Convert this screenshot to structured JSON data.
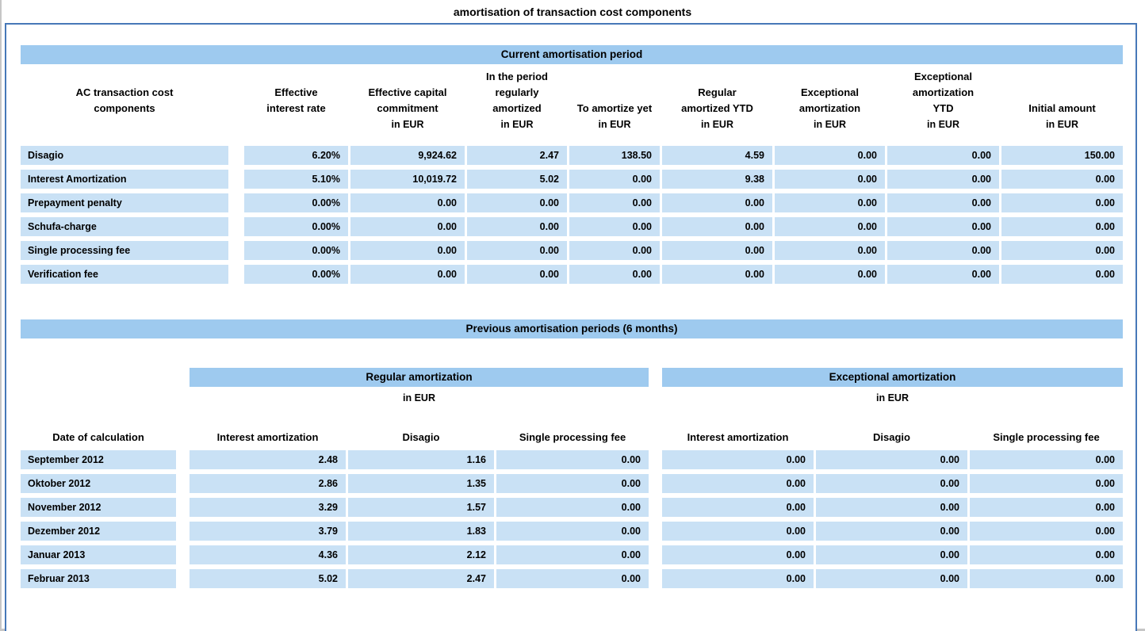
{
  "colors": {
    "band_blue": "#9ECAEF",
    "cell_blue": "#C9E1F5",
    "border_blue": "#4778B8",
    "edge_grey": "#C6C6C6",
    "text": "#000000"
  },
  "page": {
    "title": "amortisation of transaction cost components"
  },
  "current_period": {
    "section_title": "Current amortisation period",
    "columns": [
      {
        "lines": [
          "AC transaction cost",
          "components"
        ],
        "unit": ""
      },
      {
        "lines": [
          "Effective",
          "interest rate"
        ],
        "unit": ""
      },
      {
        "lines": [
          "Effective capital",
          "commitment"
        ],
        "unit": "in EUR"
      },
      {
        "lines": [
          "In the period",
          "regularly",
          "amortized"
        ],
        "unit": "in EUR"
      },
      {
        "lines": [
          "To amortize yet"
        ],
        "unit": "in EUR"
      },
      {
        "lines": [
          "Regular",
          "amortized YTD"
        ],
        "unit": "in EUR"
      },
      {
        "lines": [
          "Exceptional",
          "amortization"
        ],
        "unit": "in EUR"
      },
      {
        "lines": [
          "Exceptional",
          "amortization",
          "YTD"
        ],
        "unit": "in EUR"
      },
      {
        "lines": [
          "Initial amount"
        ],
        "unit": "in EUR"
      }
    ],
    "rows": [
      {
        "label": "Disagio",
        "values": [
          "6.20%",
          "9,924.62",
          "2.47",
          "138.50",
          "4.59",
          "0.00",
          "0.00",
          "150.00"
        ]
      },
      {
        "label": "Interest Amortization",
        "values": [
          "5.10%",
          "10,019.72",
          "5.02",
          "0.00",
          "9.38",
          "0.00",
          "0.00",
          "0.00"
        ]
      },
      {
        "label": "Prepayment penalty",
        "values": [
          "0.00%",
          "0.00",
          "0.00",
          "0.00",
          "0.00",
          "0.00",
          "0.00",
          "0.00"
        ]
      },
      {
        "label": "Schufa-charge",
        "values": [
          "0.00%",
          "0.00",
          "0.00",
          "0.00",
          "0.00",
          "0.00",
          "0.00",
          "0.00"
        ]
      },
      {
        "label": "Single processing fee",
        "values": [
          "0.00%",
          "0.00",
          "0.00",
          "0.00",
          "0.00",
          "0.00",
          "0.00",
          "0.00"
        ]
      },
      {
        "label": "Verification fee",
        "values": [
          "0.00%",
          "0.00",
          "0.00",
          "0.00",
          "0.00",
          "0.00",
          "0.00",
          "0.00"
        ]
      }
    ]
  },
  "previous_periods": {
    "section_title": "Previous amortisation periods (6 months)",
    "date_column_label": "Date of calculation",
    "groups": [
      {
        "label": "Regular amortization",
        "unit": "in EUR",
        "columns": [
          "Interest amortization",
          "Disagio",
          "Single processing fee"
        ]
      },
      {
        "label": "Exceptional amortization",
        "unit": "in EUR",
        "columns": [
          "Interest amortization",
          "Disagio",
          "Single processing fee"
        ]
      }
    ],
    "rows": [
      {
        "label": "September 2012",
        "values": [
          "2.48",
          "1.16",
          "0.00",
          "0.00",
          "0.00",
          "0.00"
        ]
      },
      {
        "label": "Oktober 2012",
        "values": [
          "2.86",
          "1.35",
          "0.00",
          "0.00",
          "0.00",
          "0.00"
        ]
      },
      {
        "label": "November 2012",
        "values": [
          "3.29",
          "1.57",
          "0.00",
          "0.00",
          "0.00",
          "0.00"
        ]
      },
      {
        "label": "Dezember 2012",
        "values": [
          "3.79",
          "1.83",
          "0.00",
          "0.00",
          "0.00",
          "0.00"
        ]
      },
      {
        "label": "Januar 2013",
        "values": [
          "4.36",
          "2.12",
          "0.00",
          "0.00",
          "0.00",
          "0.00"
        ]
      },
      {
        "label": "Februar 2013",
        "values": [
          "5.02",
          "2.47",
          "0.00",
          "0.00",
          "0.00",
          "0.00"
        ]
      }
    ]
  }
}
